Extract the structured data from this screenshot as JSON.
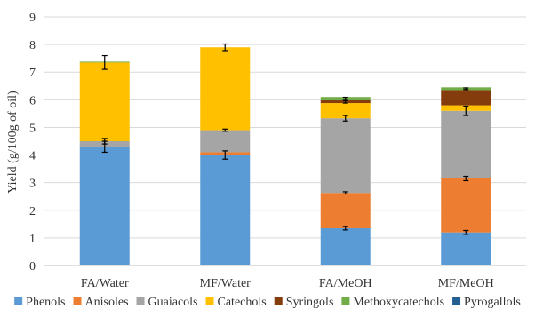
{
  "chart_data": {
    "type": "bar",
    "stacked": true,
    "title": "",
    "xlabel": "",
    "ylabel": "Yield (g/100g of oil)",
    "ylim": [
      0,
      9
    ],
    "yticks": [
      "0",
      "1",
      "2",
      "3",
      "4",
      "5",
      "6",
      "7",
      "8",
      "9"
    ],
    "grid": true,
    "legend_position": "bottom",
    "categories": [
      "FA/Water",
      "MF/Water",
      "FA/MeOH",
      "MF/MeOH"
    ],
    "series": [
      {
        "name": "Phenols",
        "color": "#5B9BD5",
        "values": [
          4.3,
          4.0,
          1.35,
          1.2
        ]
      },
      {
        "name": "Anisoles",
        "color": "#ED7D31",
        "values": [
          0.0,
          0.1,
          1.28,
          1.95
        ]
      },
      {
        "name": "Guaiacols",
        "color": "#A5A5A5",
        "values": [
          0.2,
          0.8,
          2.7,
          2.45
        ]
      },
      {
        "name": "Catechols",
        "color": "#FFC000",
        "values": [
          2.85,
          3.0,
          0.55,
          0.2
        ]
      },
      {
        "name": "Syringols",
        "color": "#843C0C",
        "values": [
          0.0,
          0.0,
          0.1,
          0.55
        ]
      },
      {
        "name": "Methoxycatechols",
        "color": "#70AD47",
        "values": [
          0.03,
          0.0,
          0.12,
          0.1
        ]
      },
      {
        "name": "Pyrogallols",
        "color": "#255E91",
        "values": [
          0.0,
          0.0,
          0.0,
          0.0
        ]
      }
    ],
    "error_bars": [
      {
        "category": "FA/Water",
        "y": 4.3,
        "err": 0.2
      },
      {
        "category": "FA/Water",
        "y": 4.5,
        "err": 0.1
      },
      {
        "category": "FA/Water",
        "y": 7.35,
        "err": 0.25
      },
      {
        "category": "MF/Water",
        "y": 4.0,
        "err": 0.15
      },
      {
        "category": "MF/Water",
        "y": 4.9,
        "err": 0.04
      },
      {
        "category": "MF/Water",
        "y": 7.9,
        "err": 0.12
      },
      {
        "category": "FA/MeOH",
        "y": 1.35,
        "err": 0.06
      },
      {
        "category": "FA/MeOH",
        "y": 2.63,
        "err": 0.04
      },
      {
        "category": "FA/MeOH",
        "y": 5.33,
        "err": 0.1
      },
      {
        "category": "FA/MeOH",
        "y": 5.93,
        "err": 0.05
      },
      {
        "category": "FA/MeOH",
        "y": 6.03,
        "err": 0.06
      },
      {
        "category": "MF/MeOH",
        "y": 1.2,
        "err": 0.07
      },
      {
        "category": "MF/MeOH",
        "y": 3.15,
        "err": 0.08
      },
      {
        "category": "MF/MeOH",
        "y": 5.6,
        "err": 0.17
      },
      {
        "category": "MF/MeOH",
        "y": 6.4,
        "err": 0.03
      }
    ]
  }
}
